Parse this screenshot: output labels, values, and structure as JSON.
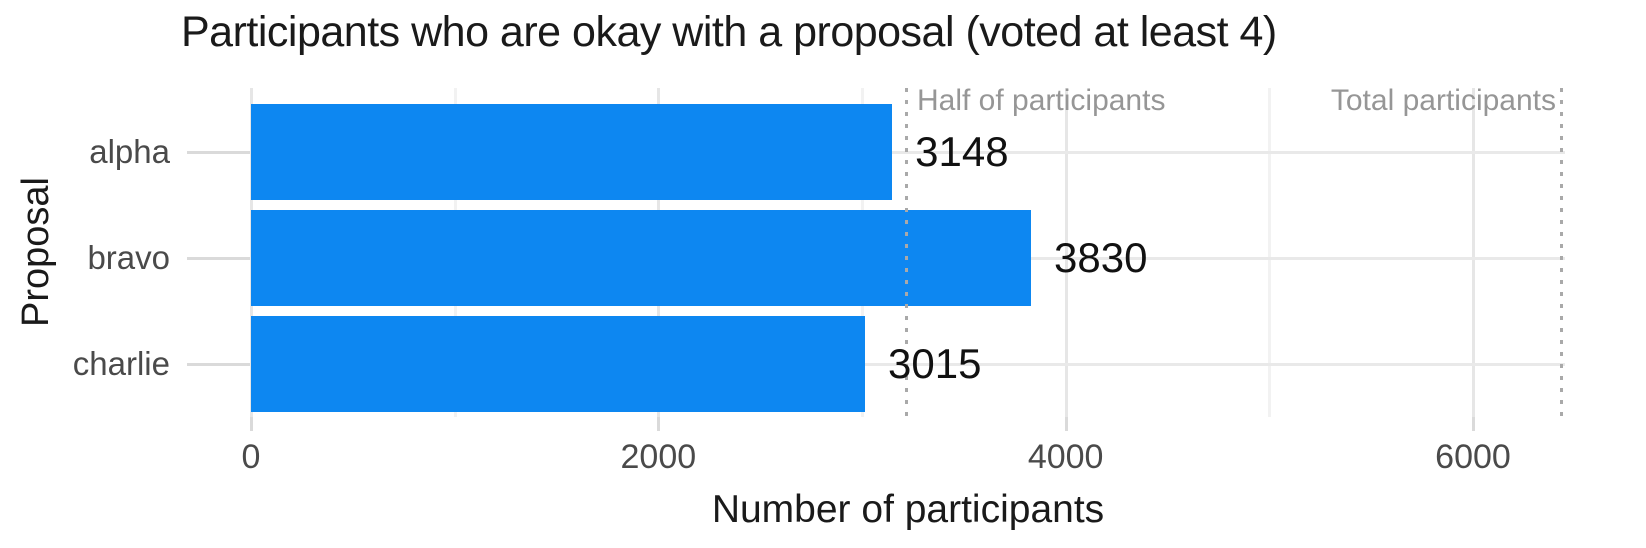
{
  "chart_data": {
    "type": "bar",
    "orientation": "horizontal",
    "title": "Participants who are okay with a proposal (voted at least 4)",
    "xlabel": "Number of participants",
    "ylabel": "Proposal",
    "categories": [
      "alpha",
      "bravo",
      "charlie"
    ],
    "values": [
      3148,
      3830,
      3015
    ],
    "value_labels": [
      "3148",
      "3830",
      "3015"
    ],
    "x_ticks": [
      0,
      2000,
      4000,
      6000
    ],
    "x_tick_labels": [
      "0",
      "2000",
      "4000",
      "6000"
    ],
    "x_minor_ticks": [
      1000,
      3000,
      5000
    ],
    "xlim": [
      0,
      6450
    ],
    "grid": true,
    "reference_lines": [
      {
        "label": "Half of participants",
        "value": 3216,
        "label_side": "right"
      },
      {
        "label": "Total participants",
        "value": 6433,
        "label_side": "left"
      }
    ],
    "colors": {
      "bar": "#0d87f1",
      "grid_major": "#e9e9e9",
      "grid_minor": "#f2f2f2",
      "tick": "#dadada",
      "reference_line": "#a9a9a9",
      "annotation_text": "#969696",
      "axis_text": "#4a4a4a",
      "title_text": "#1a1a1a"
    }
  }
}
